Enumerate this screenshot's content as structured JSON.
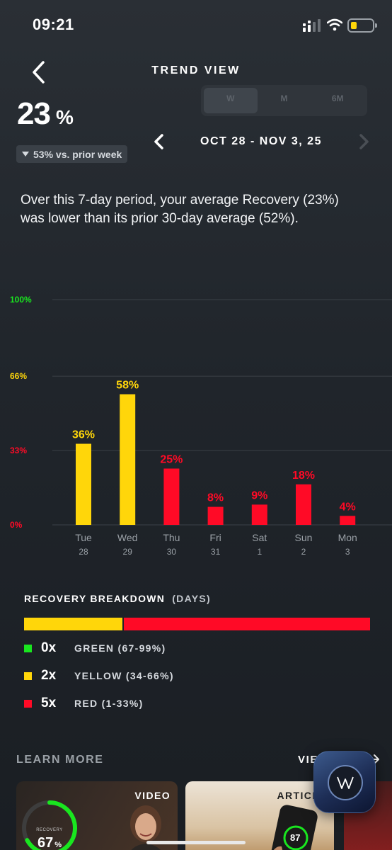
{
  "status_bar": {
    "time": "09:21"
  },
  "header": {
    "title": "TREND VIEW"
  },
  "summary_value": {
    "value": "23",
    "unit": "%"
  },
  "comparison": {
    "text": "53% vs. prior week"
  },
  "period_tabs": [
    {
      "label": "W",
      "active": true
    },
    {
      "label": "M",
      "active": false
    },
    {
      "label": "6M",
      "active": false
    }
  ],
  "date_range": {
    "label": "OCT 28 - NOV 3, 25"
  },
  "description": "Over this 7-day period, your average Recovery (23%) was lower than its prior 30-day average (52%).",
  "colors": {
    "green": "#19e61f",
    "yellow": "#ffd60a",
    "red": "#ff0a26",
    "grid": "#3a4047",
    "axis_text": "#9aa0a6"
  },
  "chart_data": {
    "type": "bar",
    "categories": [
      "Tue 28",
      "Wed 29",
      "Thu 30",
      "Fri 31",
      "Sat 1",
      "Sun 2",
      "Mon 3"
    ],
    "day_names": [
      "Tue",
      "Wed",
      "Thu",
      "Fri",
      "Sat",
      "Sun",
      "Mon"
    ],
    "day_numbers": [
      "28",
      "29",
      "30",
      "31",
      "1",
      "2",
      "3"
    ],
    "values": [
      36,
      58,
      25,
      8,
      9,
      18,
      4
    ],
    "value_labels": [
      "36%",
      "58%",
      "25%",
      "8%",
      "9%",
      "18%",
      "4%"
    ],
    "y_ticks": [
      {
        "value": 100,
        "label": "100%",
        "color": "#19e61f"
      },
      {
        "value": 66,
        "label": "66%",
        "color": "#ffd60a"
      },
      {
        "value": 33,
        "label": "33%",
        "color": "#ff0a26"
      },
      {
        "value": 0,
        "label": "0%",
        "color": "#ff0a26"
      }
    ],
    "ylim": [
      0,
      100
    ],
    "grid": true,
    "color_rule": "yellow for 34-66, red for 1-33, green for 67-99"
  },
  "breakdown": {
    "title": "RECOVERY BREAKDOWN",
    "subtitle": "(DAYS)",
    "bar": {
      "yellow_days": 2,
      "red_days": 5,
      "green_days": 0
    },
    "items": [
      {
        "count": "0x",
        "label": "GREEN (67-99%)",
        "color": "#19e61f"
      },
      {
        "count": "2x",
        "label": "YELLOW (34-66%)",
        "color": "#ffd60a"
      },
      {
        "count": "5x",
        "label": "RED (1-33%)",
        "color": "#ff0a26"
      }
    ]
  },
  "learn_more": {
    "title": "LEARN MORE",
    "view_all": "VIEW ALL",
    "cards": [
      {
        "tag": "VIDEO",
        "ring_label": "RECOVERY",
        "ring_value": "67",
        "ring_unit": "%",
        "ring_fraction": 0.67
      },
      {
        "tag": "ARTICLE",
        "phone_value": "87"
      }
    ]
  }
}
